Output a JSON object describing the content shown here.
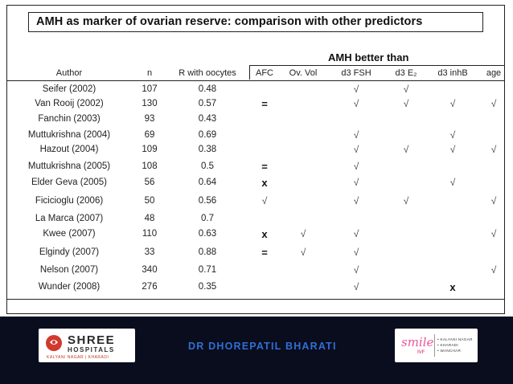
{
  "title": "AMH  as marker of ovarian reserve: comparison with other predictors",
  "group_header": "AMH better than",
  "columns": [
    {
      "key": "author",
      "label": "Author"
    },
    {
      "key": "n",
      "label": "n"
    },
    {
      "key": "r",
      "label": "R with oocytes"
    },
    {
      "key": "afc",
      "label": "AFC"
    },
    {
      "key": "ovvol",
      "label": "Ov. Vol"
    },
    {
      "key": "fsh",
      "label": "d3 FSH"
    },
    {
      "key": "e2",
      "label": "d3 E₂"
    },
    {
      "key": "inhb",
      "label": "d3 inhB"
    },
    {
      "key": "age",
      "label": "age"
    }
  ],
  "rows": [
    {
      "author": "Seifer (2002)",
      "n": "107",
      "r": "0.48",
      "afc": "",
      "ovvol": "",
      "fsh": "√",
      "e2": "√",
      "inhb": "",
      "age": ""
    },
    {
      "author": "Van Rooij (2002)",
      "n": "130",
      "r": "0.57",
      "afc": "=",
      "ovvol": "",
      "fsh": "√",
      "e2": "√",
      "inhb": "√",
      "age": "√"
    },
    {
      "author": "Fanchin (2003)",
      "n": "93",
      "r": "0.43",
      "afc": "",
      "ovvol": "",
      "fsh": "",
      "e2": "",
      "inhb": "",
      "age": ""
    },
    {
      "author": "Muttukrishna (2004)",
      "n": "69",
      "r": "0.69",
      "afc": "",
      "ovvol": "",
      "fsh": "√",
      "e2": "",
      "inhb": "√",
      "age": ""
    },
    {
      "author": "Hazout (2004)",
      "n": "109",
      "r": "0.38",
      "afc": "",
      "ovvol": "",
      "fsh": "√",
      "e2": "√",
      "inhb": "√",
      "age": "√"
    },
    {
      "author": "Muttukrishna (2005)",
      "n": "108",
      "r": "0.5",
      "afc": "=",
      "ovvol": "",
      "fsh": "√",
      "e2": "",
      "inhb": "",
      "age": ""
    },
    {
      "author": "Elder Geva (2005)",
      "n": "56",
      "r": "0.64",
      "afc": "x",
      "ovvol": "",
      "fsh": "√",
      "e2": "",
      "inhb": "√",
      "age": ""
    },
    {
      "author": "Ficicioglu (2006)",
      "n": "50",
      "r": "0.56",
      "afc": "√",
      "ovvol": "",
      "fsh": "√",
      "e2": "√",
      "inhb": "",
      "age": "√"
    },
    {
      "author": "La Marca (2007)",
      "n": "48",
      "r": "0.7",
      "afc": "",
      "ovvol": "",
      "fsh": "",
      "e2": "",
      "inhb": "",
      "age": ""
    },
    {
      "author": "Kwee (2007)",
      "n": "110",
      "r": "0.63",
      "afc": "x",
      "ovvol": "√",
      "fsh": "√",
      "e2": "",
      "inhb": "",
      "age": "√"
    },
    {
      "author": "Elgindy (2007)",
      "n": "33",
      "r": "0.88",
      "afc": "=",
      "ovvol": "√",
      "fsh": "√",
      "e2": "",
      "inhb": "",
      "age": ""
    },
    {
      "author": "Nelson (2007)",
      "n": "340",
      "r": "0.71",
      "afc": "",
      "ovvol": "",
      "fsh": "√",
      "e2": "",
      "inhb": "",
      "age": "√"
    },
    {
      "author": "Wunder (2008)",
      "n": "276",
      "r": "0.35",
      "afc": "",
      "ovvol": "",
      "fsh": "√",
      "e2": "",
      "inhb": "x",
      "age": ""
    }
  ],
  "footer": {
    "hospital_name": "SHREE",
    "hospital_sub": "HOSPITALS",
    "hospital_locations": "KALYANI NAGAR  |  KHARADI",
    "doctor": "DR DHOREPATIL BHARATI",
    "clinic_brand": "smile",
    "clinic_sub": "IVF",
    "clinic_locations": [
      "• KALYANI NAGAR",
      "• KHARADI",
      "• WANCHAR"
    ],
    "background_color": "#0a0d1e",
    "accent_color": "#2f6fd4"
  }
}
